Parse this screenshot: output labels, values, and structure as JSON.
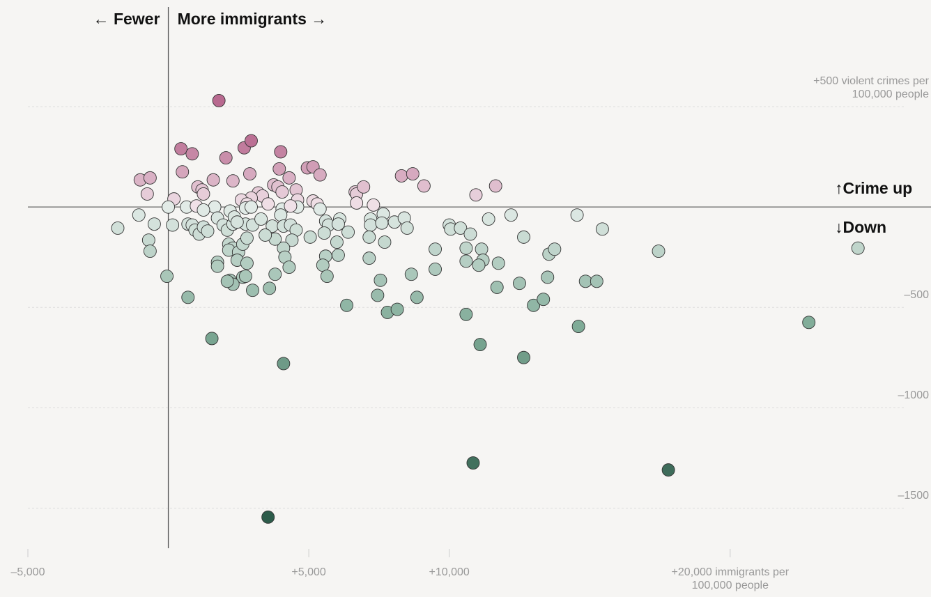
{
  "chart_data": {
    "type": "scatter",
    "annotations": [
      "← Fewer",
      "More immigrants →",
      "↑Crime up",
      "↓Down"
    ],
    "x": [
      1800,
      450,
      850,
      2050,
      2700,
      2950,
      4000,
      500,
      -1000,
      -650,
      -750,
      200,
      0,
      -1050,
      -1800,
      -500,
      150,
      -700,
      -650,
      -50,
      700,
      1550,
      4100,
      3550,
      650,
      1050,
      1200,
      1250,
      1600,
      2300,
      2900,
      3950,
      4300,
      4950,
      5150,
      5400,
      3200,
      3350,
      2950,
      2600,
      2800,
      2750,
      2950,
      3550,
      3750,
      3900,
      4050,
      4550,
      4600,
      5150,
      5300,
      1000,
      1650,
      1250,
      700,
      850,
      950,
      1100,
      1250,
      1400,
      1750,
      1950,
      2100,
      2200,
      2300,
      2350,
      2750,
      3000,
      3300,
      3700,
      4050,
      4000,
      4100,
      4350,
      4600,
      4550,
      5050,
      4400,
      4100,
      4150,
      4300,
      3800,
      3450,
      3800,
      3600,
      3000,
      2650,
      2750,
      2200,
      2300,
      2100,
      2150,
      2300,
      2150,
      2500,
      2450,
      2800,
      2650,
      2800,
      1750,
      1750,
      5400,
      5600,
      5700,
      6100,
      6050,
      5550,
      6400,
      6000,
      6050,
      5600,
      5500,
      5650,
      6350,
      6650,
      6700,
      6950,
      6700,
      7300,
      7650,
      7200,
      7200,
      7600,
      7150,
      7700,
      8050,
      8400,
      8500,
      7150,
      7550,
      7450,
      7800,
      8150,
      8850,
      8650,
      9500,
      9500,
      8300,
      8700,
      9100,
      10000,
      10050,
      10400,
      10750,
      10600,
      10600,
      11150,
      11200,
      11050,
      11750,
      10600,
      11100,
      10950,
      11650,
      11400,
      11700,
      12200,
      12650,
      12500,
      12650,
      13000,
      13350,
      13500,
      13550,
      13750,
      14550,
      15450,
      14850,
      15250,
      14600,
      17450,
      22800,
      24550,
      17800,
      10850,
      2450,
      4350
    ],
    "values": [
      530,
      290,
      265,
      245,
      295,
      330,
      275,
      175,
      135,
      145,
      65,
      40,
      0,
      -40,
      -105,
      -85,
      -90,
      -165,
      -220,
      -345,
      -450,
      -655,
      -780,
      -1545,
      0,
      100,
      85,
      65,
      135,
      130,
      165,
      190,
      145,
      195,
      200,
      160,
      70,
      55,
      45,
      35,
      15,
      -5,
      0,
      15,
      110,
      100,
      75,
      85,
      35,
      30,
      15,
      5,
      0,
      -15,
      -85,
      -90,
      -115,
      -135,
      -100,
      -120,
      -55,
      -90,
      -115,
      -20,
      -85,
      -50,
      -85,
      -90,
      -60,
      -95,
      -10,
      -40,
      -95,
      -90,
      0,
      -115,
      -150,
      -165,
      -205,
      -250,
      -300,
      -160,
      -140,
      -335,
      -405,
      -415,
      -350,
      -345,
      -365,
      -385,
      -370,
      -185,
      -205,
      -215,
      -225,
      -265,
      -280,
      -185,
      -155,
      -275,
      -295,
      -10,
      -70,
      -90,
      -60,
      -85,
      -130,
      -125,
      -175,
      -240,
      -245,
      -290,
      -345,
      -490,
      75,
      65,
      100,
      20,
      10,
      -35,
      -60,
      -90,
      -80,
      -150,
      -175,
      -75,
      -55,
      -105,
      -255,
      -365,
      -440,
      -525,
      -510,
      -450,
      -335,
      -310,
      -210,
      155,
      165,
      105,
      -90,
      -110,
      -105,
      -135,
      -205,
      -270,
      -210,
      -265,
      -290,
      -280,
      -535,
      -685,
      60,
      105,
      -60,
      -400,
      -40,
      -150,
      -380,
      -750,
      -490,
      -460,
      -350,
      -235,
      -210,
      -40,
      -110,
      -370,
      -370,
      -595,
      -220,
      -575,
      -205,
      -1310,
      -1275,
      -75,
      5
    ],
    "color_scale": [
      {
        "value": 350,
        "color": "#b8698f"
      },
      {
        "value": 0,
        "color": "#f1e3e9"
      },
      {
        "value": 0,
        "color": "#e2ebe7"
      },
      {
        "value": -600,
        "color": "#7eaa96"
      },
      {
        "value": -1500,
        "color": "#2d5c4a"
      }
    ],
    "xlim": [
      -5000,
      27000
    ],
    "ylim": [
      -1700,
      1000
    ],
    "xticks": [
      {
        "value": -5000,
        "label": "–5,000"
      },
      {
        "value": 5000,
        "label": "+5,000"
      },
      {
        "value": 10000,
        "label": "+10,000"
      },
      {
        "value": 20000,
        "label": "+20,000 immigrants per 100,000 people"
      }
    ],
    "yticks": [
      {
        "value": 500,
        "label": "+500 violent crimes per 100,000 people"
      },
      {
        "value": -500,
        "label": "–500"
      },
      {
        "value": -1000,
        "label": "–1000"
      },
      {
        "value": -1500,
        "label": "–1500"
      }
    ],
    "grid": true
  }
}
